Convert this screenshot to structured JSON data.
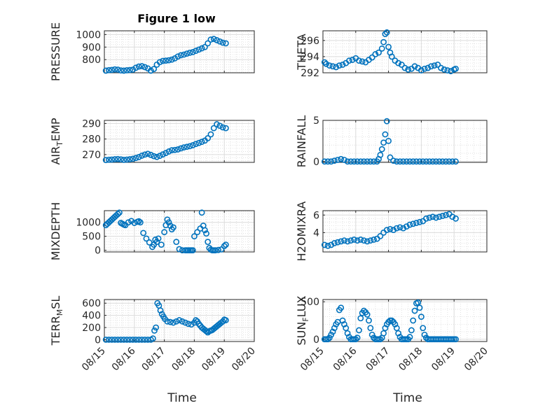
{
  "figure": {
    "title": "Figure 1 low"
  },
  "colors": {
    "marker": "#0072BD",
    "axis": "#262626",
    "grid": "#dcdcdc"
  },
  "chart_data": [
    {
      "type": "scatter",
      "ylabel": "PRESSURE",
      "title": "Figure 1 low",
      "grid": true,
      "minor_grid": true,
      "xlim": [
        "08/15",
        "08/20"
      ],
      "ylim": [
        695,
        1030
      ],
      "yticks": [
        800,
        900,
        1000
      ],
      "x": [
        15.05,
        15.15,
        15.25,
        15.35,
        15.45,
        15.55,
        15.65,
        15.75,
        15.85,
        15.95,
        16.05,
        16.15,
        16.25,
        16.35,
        16.45,
        16.55,
        16.65,
        16.75,
        16.85,
        16.95,
        17.05,
        17.15,
        17.25,
        17.35,
        17.45,
        17.55,
        17.65,
        17.75,
        17.85,
        17.95,
        18.05,
        18.15,
        18.25,
        18.35,
        18.45,
        18.55,
        18.65,
        18.75,
        18.85,
        18.95,
        19.05
      ],
      "y": [
        712,
        716,
        718,
        722,
        720,
        714,
        712,
        715,
        717,
        720,
        735,
        745,
        748,
        740,
        730,
        712,
        725,
        760,
        780,
        790,
        792,
        795,
        800,
        810,
        825,
        835,
        840,
        848,
        855,
        860,
        870,
        880,
        890,
        900,
        930,
        960,
        965,
        955,
        945,
        935,
        930
      ]
    },
    {
      "type": "scatter",
      "ylabel": "THETA",
      "grid": true,
      "minor_grid": true,
      "xlim": [
        "08/15",
        "08/20"
      ],
      "ylim": [
        292,
        297.2
      ],
      "yticks": [
        292,
        294,
        296
      ],
      "x": [
        15.05,
        15.1,
        15.2,
        15.3,
        15.4,
        15.5,
        15.6,
        15.7,
        15.8,
        15.9,
        16.0,
        16.1,
        16.2,
        16.3,
        16.4,
        16.5,
        16.6,
        16.7,
        16.8,
        16.85,
        16.9,
        16.95,
        17.0,
        17.05,
        17.1,
        17.2,
        17.3,
        17.4,
        17.5,
        17.6,
        17.7,
        17.8,
        17.9,
        18.0,
        18.1,
        18.2,
        18.3,
        18.4,
        18.5,
        18.6,
        18.7,
        18.8,
        18.9,
        19.0,
        19.05
      ],
      "y": [
        293.3,
        293.1,
        292.9,
        292.8,
        292.7,
        292.9,
        293.0,
        293.2,
        293.5,
        293.6,
        293.8,
        293.5,
        293.4,
        293.3,
        293.6,
        293.9,
        294.3,
        294.5,
        295.0,
        295.8,
        296.8,
        297.0,
        295.2,
        294.5,
        294.0,
        293.5,
        293.2,
        293.0,
        292.6,
        292.4,
        292.5,
        292.8,
        292.6,
        292.3,
        292.5,
        292.6,
        292.8,
        292.9,
        293.0,
        292.6,
        292.4,
        292.3,
        292.2,
        292.4,
        292.5
      ]
    },
    {
      "type": "scatter",
      "ylabel": "AIR_TEMP",
      "grid": true,
      "minor_grid": true,
      "xlim": [
        "08/15",
        "08/20"
      ],
      "ylim": [
        265,
        292
      ],
      "yticks": [
        270,
        280,
        290
      ],
      "x": [
        15.05,
        15.15,
        15.25,
        15.35,
        15.45,
        15.55,
        15.65,
        15.75,
        15.85,
        15.95,
        16.05,
        16.15,
        16.25,
        16.35,
        16.45,
        16.55,
        16.65,
        16.75,
        16.85,
        16.95,
        17.05,
        17.15,
        17.25,
        17.35,
        17.45,
        17.55,
        17.65,
        17.75,
        17.85,
        17.95,
        18.05,
        18.15,
        18.25,
        18.35,
        18.45,
        18.55,
        18.65,
        18.75,
        18.85,
        18.95,
        19.05
      ],
      "y": [
        266.5,
        266.7,
        266.8,
        267.0,
        267.1,
        266.9,
        266.6,
        266.8,
        267.0,
        267.3,
        267.8,
        268.4,
        269.3,
        270.0,
        270.5,
        269.8,
        269.0,
        268.5,
        269.2,
        270.1,
        271.0,
        272.0,
        272.8,
        273.0,
        273.3,
        274.0,
        274.6,
        275.0,
        275.4,
        276.0,
        276.8,
        277.5,
        278.2,
        279.0,
        280.5,
        283.0,
        287.0,
        289.5,
        288.5,
        287.5,
        287.0
      ]
    },
    {
      "type": "scatter",
      "ylabel": "RAINFALL",
      "grid": true,
      "minor_grid": true,
      "xlim": [
        "08/15",
        "08/20"
      ],
      "ylim": [
        -0.1,
        5.0
      ],
      "yticks": [
        0,
        5
      ],
      "x": [
        15.05,
        15.15,
        15.25,
        15.35,
        15.45,
        15.55,
        15.65,
        15.75,
        15.85,
        15.95,
        16.05,
        16.15,
        16.25,
        16.35,
        16.45,
        16.55,
        16.65,
        16.7,
        16.75,
        16.8,
        16.85,
        16.9,
        16.95,
        17.0,
        17.05,
        17.15,
        17.25,
        17.35,
        17.45,
        17.55,
        17.65,
        17.75,
        17.85,
        17.95,
        18.05,
        18.15,
        18.25,
        18.35,
        18.45,
        18.55,
        18.65,
        18.75,
        18.85,
        18.95,
        19.05
      ],
      "y": [
        0,
        0,
        0,
        0.1,
        0.2,
        0.3,
        0.2,
        0,
        0,
        0,
        0,
        0,
        0,
        0,
        0,
        0,
        0,
        0.3,
        0.8,
        1.5,
        2.3,
        3.3,
        4.9,
        2.5,
        0.5,
        0.1,
        0,
        0,
        0,
        0,
        0,
        0,
        0,
        0,
        0,
        0,
        0,
        0,
        0,
        0,
        0,
        0,
        0,
        0,
        0
      ]
    },
    {
      "type": "scatter",
      "ylabel": "MIXDEPTH",
      "grid": true,
      "minor_grid": true,
      "xlim": [
        "08/15",
        "08/20"
      ],
      "ylim": [
        -60,
        1420
      ],
      "yticks": [
        0,
        500,
        1000
      ],
      "x": [
        15.05,
        15.1,
        15.15,
        15.2,
        15.25,
        15.3,
        15.35,
        15.4,
        15.45,
        15.5,
        15.55,
        15.6,
        15.65,
        15.7,
        15.8,
        15.9,
        16.0,
        16.1,
        16.15,
        16.2,
        16.3,
        16.4,
        16.5,
        16.6,
        16.65,
        16.7,
        16.75,
        16.8,
        16.9,
        17.0,
        17.05,
        17.1,
        17.15,
        17.2,
        17.25,
        17.3,
        17.4,
        17.5,
        17.6,
        17.7,
        17.75,
        17.8,
        17.85,
        17.9,
        17.95,
        18.0,
        18.1,
        18.2,
        18.25,
        18.3,
        18.35,
        18.4,
        18.45,
        18.5,
        18.55,
        18.6,
        18.65,
        18.7,
        18.8,
        18.9,
        19.0,
        19.05
      ],
      "y": [
        900,
        950,
        1000,
        1050,
        1100,
        1150,
        1200,
        1250,
        1300,
        1350,
        980,
        950,
        920,
        900,
        1000,
        1050,
        980,
        1020,
        1040,
        1000,
        620,
        420,
        280,
        120,
        200,
        380,
        300,
        420,
        200,
        650,
        900,
        1100,
        1000,
        880,
        750,
        820,
        300,
        40,
        0,
        0,
        0,
        0,
        0,
        0,
        0,
        500,
        650,
        780,
        1350,
        880,
        720,
        600,
        300,
        80,
        20,
        0,
        0,
        0,
        10,
        30,
        150,
        200
      ]
    },
    {
      "type": "scatter",
      "ylabel": "H2OMIXRA",
      "grid": true,
      "minor_grid": true,
      "xlim": [
        "08/15",
        "08/20"
      ],
      "ylim": [
        1.8,
        6.5
      ],
      "yticks": [
        4,
        6
      ],
      "x": [
        15.05,
        15.15,
        15.25,
        15.35,
        15.45,
        15.55,
        15.65,
        15.75,
        15.85,
        15.95,
        16.05,
        16.15,
        16.25,
        16.35,
        16.45,
        16.55,
        16.65,
        16.75,
        16.85,
        16.95,
        17.05,
        17.15,
        17.25,
        17.35,
        17.45,
        17.55,
        17.65,
        17.75,
        17.85,
        17.95,
        18.05,
        18.15,
        18.25,
        18.35,
        18.45,
        18.55,
        18.65,
        18.75,
        18.85,
        18.95,
        19.05
      ],
      "y": [
        2.6,
        2.5,
        2.6,
        2.8,
        2.9,
        3.0,
        3.1,
        3.0,
        3.1,
        3.2,
        3.1,
        3.2,
        3.1,
        3.0,
        3.1,
        3.2,
        3.3,
        3.6,
        4.0,
        4.3,
        4.4,
        4.3,
        4.5,
        4.6,
        4.5,
        4.7,
        4.9,
        5.0,
        5.1,
        5.2,
        5.3,
        5.6,
        5.7,
        5.8,
        5.7,
        5.8,
        5.9,
        6.0,
        6.1,
        5.8,
        5.6
      ]
    },
    {
      "type": "scatter",
      "ylabel": "TERR_MSL",
      "grid": true,
      "minor_grid": true,
      "xlim": [
        "08/15",
        "08/20"
      ],
      "ylim": [
        -30,
        660
      ],
      "yticks": [
        0,
        200,
        400,
        600
      ],
      "xlabel": "Time",
      "xticks": [
        "08/15",
        "08/16",
        "08/17",
        "08/18",
        "08/19",
        "08/20"
      ],
      "x": [
        15.05,
        15.15,
        15.25,
        15.35,
        15.45,
        15.55,
        15.65,
        15.75,
        15.85,
        15.95,
        16.05,
        16.15,
        16.25,
        16.35,
        16.45,
        16.55,
        16.62,
        16.67,
        16.72,
        16.77,
        16.82,
        16.87,
        16.92,
        16.97,
        17.02,
        17.1,
        17.2,
        17.3,
        17.4,
        17.5,
        17.6,
        17.7,
        17.8,
        17.9,
        18.0,
        18.05,
        18.1,
        18.15,
        18.2,
        18.25,
        18.3,
        18.35,
        18.4,
        18.45,
        18.5,
        18.55,
        18.6,
        18.65,
        18.7,
        18.75,
        18.8,
        18.85,
        18.9,
        18.95,
        19.0,
        19.05
      ],
      "y": [
        0,
        0,
        0,
        0,
        0,
        0,
        0,
        0,
        0,
        0,
        0,
        0,
        0,
        0,
        0,
        0,
        20,
        150,
        200,
        600,
        560,
        480,
        420,
        380,
        340,
        300,
        290,
        280,
        300,
        320,
        300,
        280,
        260,
        250,
        280,
        320,
        300,
        260,
        230,
        200,
        180,
        160,
        140,
        120,
        140,
        150,
        160,
        180,
        200,
        220,
        240,
        260,
        280,
        300,
        330,
        320
      ]
    },
    {
      "type": "scatter",
      "ylabel": "SUN_FLUX",
      "grid": true,
      "minor_grid": true,
      "xlim": [
        "08/15",
        "08/20"
      ],
      "ylim": [
        -30,
        530
      ],
      "yticks": [
        0,
        500
      ],
      "xlabel": "Time",
      "xticks": [
        "08/15",
        "08/16",
        "08/17",
        "08/18",
        "08/19",
        "08/20"
      ],
      "x": [
        15.05,
        15.1,
        15.15,
        15.2,
        15.25,
        15.3,
        15.35,
        15.4,
        15.45,
        15.5,
        15.55,
        15.6,
        15.65,
        15.7,
        15.75,
        15.8,
        15.85,
        15.9,
        15.95,
        16.0,
        16.05,
        16.1,
        16.15,
        16.2,
        16.25,
        16.3,
        16.35,
        16.4,
        16.45,
        16.5,
        16.55,
        16.6,
        16.65,
        16.7,
        16.75,
        16.8,
        16.85,
        16.9,
        16.95,
        17.0,
        17.05,
        17.1,
        17.15,
        17.2,
        17.25,
        17.3,
        17.35,
        17.4,
        17.45,
        17.5,
        17.55,
        17.6,
        17.65,
        17.7,
        17.75,
        17.8,
        17.85,
        17.9,
        17.95,
        18.0,
        18.05,
        18.1,
        18.15,
        18.2,
        18.25,
        18.3,
        18.35,
        18.4,
        18.45,
        18.5,
        18.55,
        18.6,
        18.65,
        18.7,
        18.75,
        18.8,
        18.85,
        18.9,
        18.95,
        19.0,
        19.05
      ],
      "y": [
        0,
        0,
        0,
        20,
        60,
        100,
        150,
        200,
        230,
        390,
        420,
        250,
        200,
        150,
        80,
        30,
        0,
        0,
        0,
        0,
        20,
        120,
        280,
        350,
        380,
        360,
        330,
        250,
        150,
        60,
        20,
        0,
        0,
        0,
        0,
        20,
        80,
        150,
        200,
        230,
        250,
        250,
        230,
        200,
        150,
        80,
        30,
        0,
        0,
        0,
        0,
        0,
        30,
        120,
        250,
        380,
        480,
        490,
        420,
        300,
        150,
        60,
        20,
        0,
        0,
        0,
        0,
        0,
        0,
        0,
        0,
        0,
        0,
        0,
        0,
        0,
        0,
        0,
        0,
        0,
        0
      ]
    }
  ]
}
